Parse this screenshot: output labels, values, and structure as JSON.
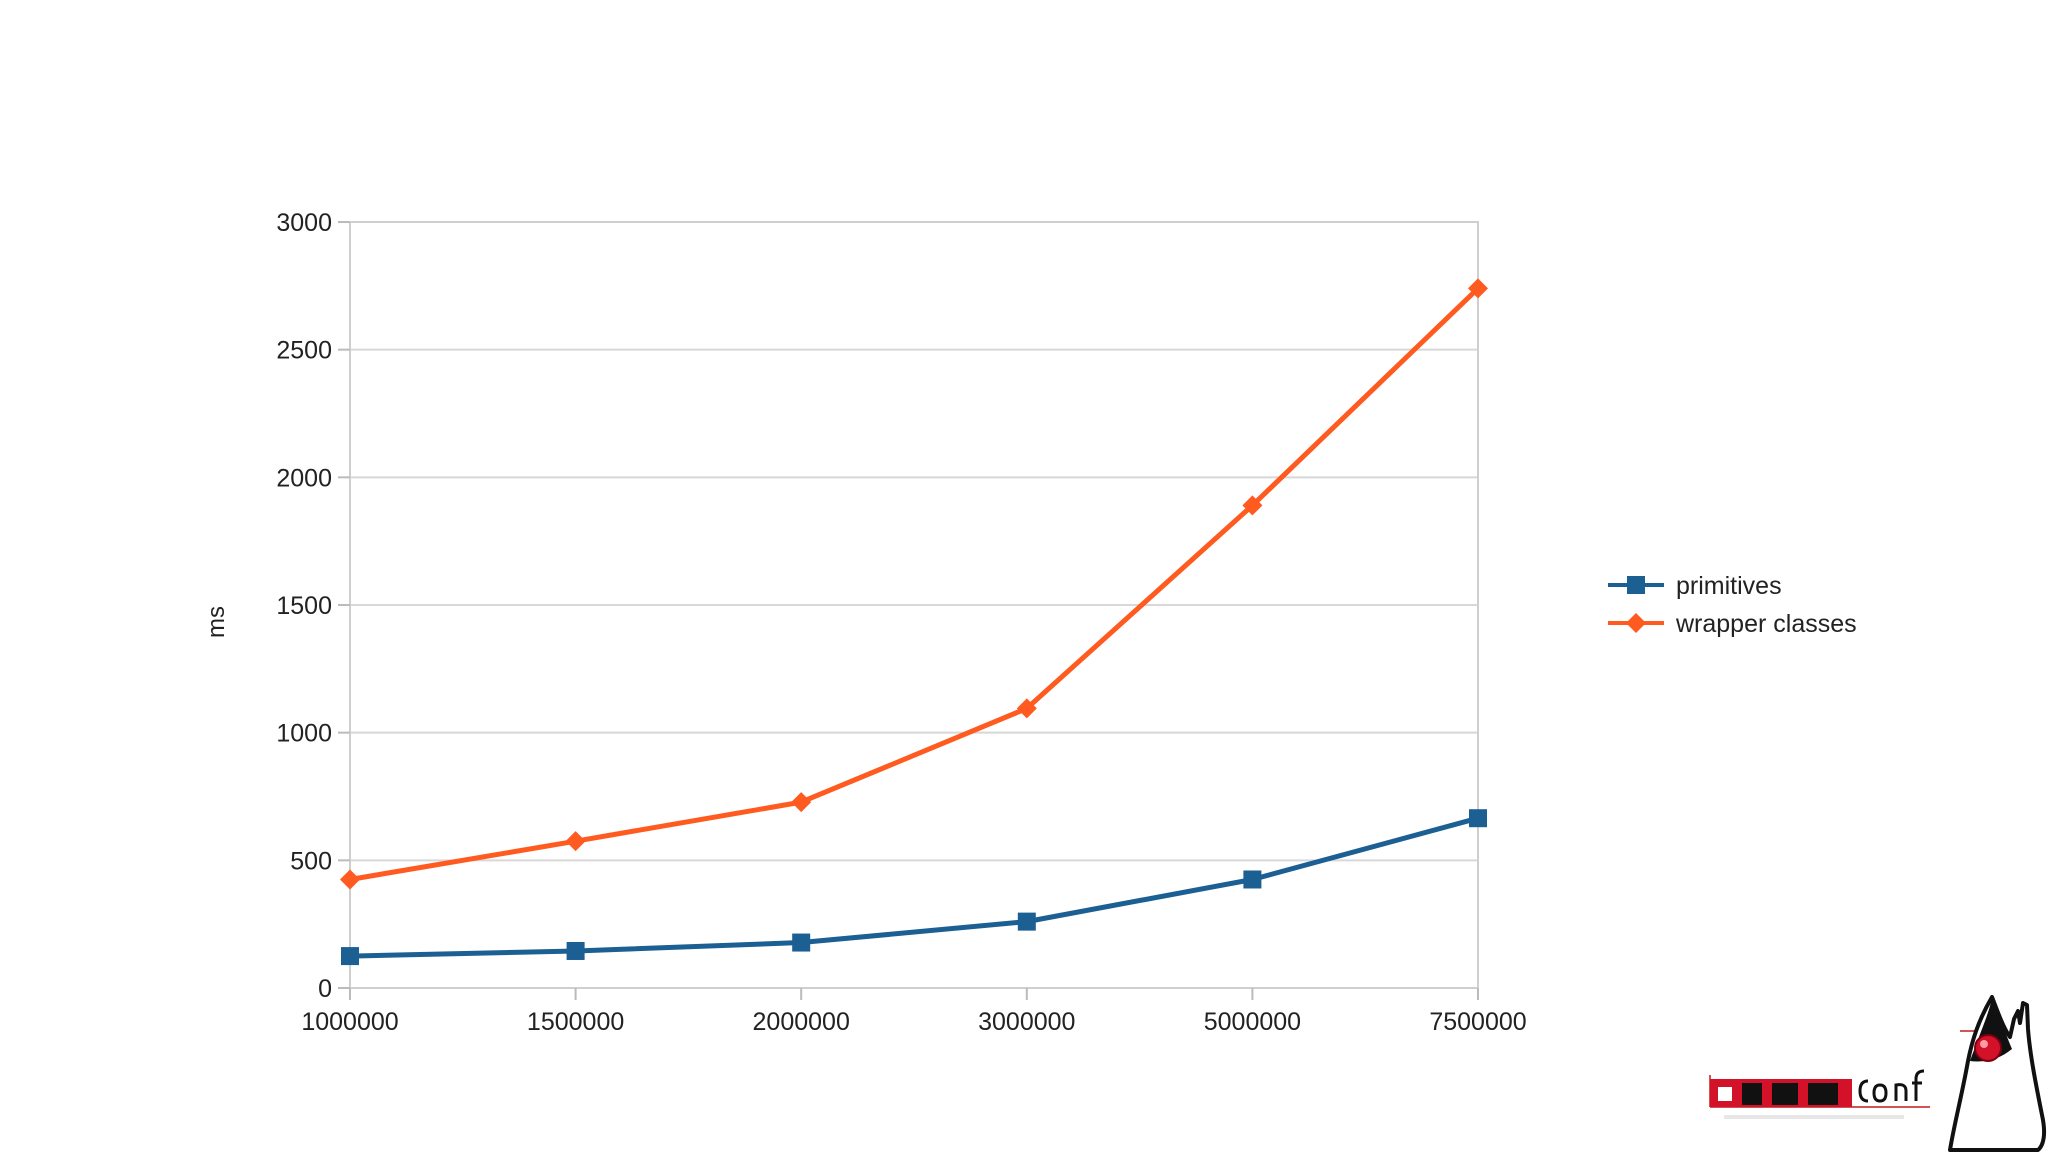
{
  "chart_data": {
    "type": "line",
    "title": "",
    "xlabel": "",
    "ylabel": "ms",
    "categories": [
      "1000000",
      "1500000",
      "2000000",
      "3000000",
      "5000000",
      "7500000"
    ],
    "series": [
      {
        "name": "primitives",
        "values": [
          125,
          145,
          178,
          260,
          425,
          665
        ],
        "color": "#1b5f93",
        "marker": "square"
      },
      {
        "name": "wrapper classes",
        "values": [
          425,
          575,
          728,
          1095,
          1890,
          2740
        ],
        "color": "#ff5a1f",
        "marker": "diamond"
      }
    ],
    "ylim": [
      0,
      3000
    ],
    "yticks": [
      "0",
      "500",
      "1000",
      "1500",
      "2000",
      "2500",
      "3000"
    ],
    "grid": true,
    "legend": "right"
  },
  "logo": {
    "name": "jdk-conference-logo-with-duke",
    "primary_color": "#d3122a"
  }
}
